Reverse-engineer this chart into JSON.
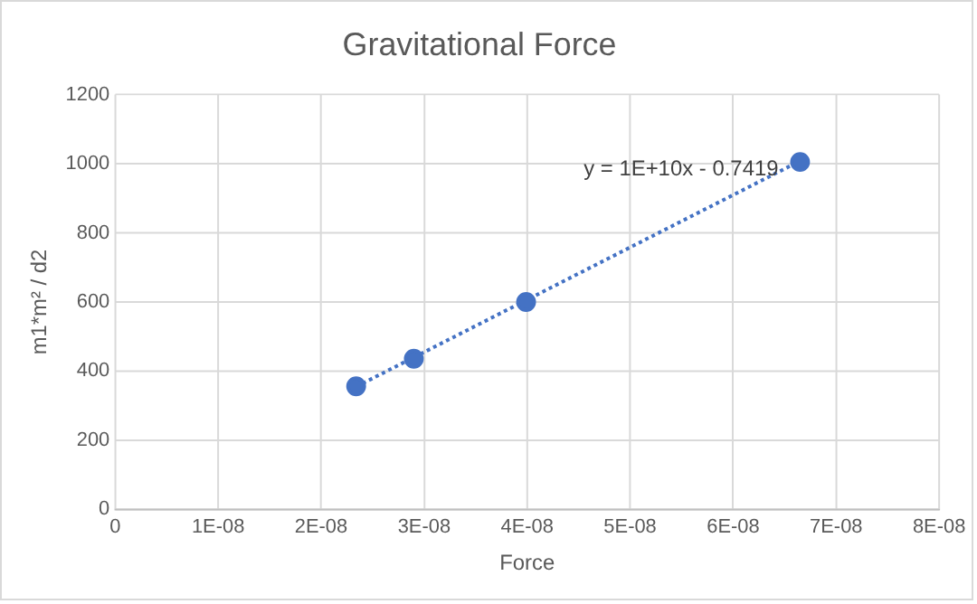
{
  "chart_data": {
    "type": "scatter",
    "title": "Gravitational Force",
    "xlabel": "Force",
    "ylabel": "m1*m² / d2",
    "x": [
      2.34e-08,
      2.9e-08,
      3.99e-08,
      6.65e-08
    ],
    "series": [
      {
        "color": "#4472c4",
        "values": [
          356,
          436,
          600,
          1005
        ],
        "marker": "circle"
      },
      {
        "type": "line",
        "color": "#4472c4",
        "x": [
          2.34e-08,
          6.65e-08
        ],
        "values": [
          355,
          1008
        ],
        "line_style": "dotted",
        "marker": "none"
      }
    ],
    "xlim": [
      0,
      8e-08
    ],
    "xticks": [
      0,
      {
        "value": 1e-08,
        "label": "1E-08"
      },
      {
        "value": 2e-08,
        "label": "2E-08"
      },
      {
        "value": 3e-08,
        "label": "3E-08"
      },
      {
        "value": 4e-08,
        "label": "4E-08"
      },
      {
        "value": 5e-08,
        "label": "5E-08"
      },
      {
        "value": 6e-08,
        "label": "6E-08"
      },
      {
        "value": 7e-08,
        "label": "7E-08"
      },
      {
        "value": 8e-08,
        "label": "8E-08"
      }
    ],
    "ylim": [
      0,
      1200
    ],
    "yticks": [
      0,
      200,
      400,
      600,
      800,
      1000,
      1200
    ],
    "grid": true,
    "legend": false,
    "annotations": [
      "y = 1E+10x - 0.7419"
    ]
  }
}
